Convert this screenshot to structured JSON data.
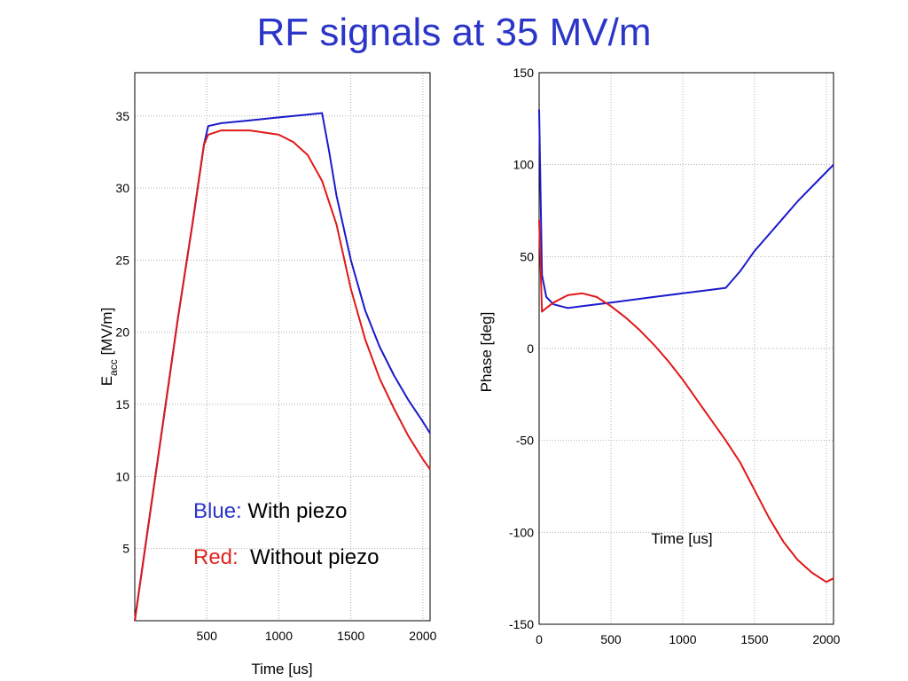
{
  "slide": {
    "title": "RF signals at 35 MV/m"
  },
  "legend": {
    "blue_key": "Blue:",
    "blue_text": "With piezo",
    "red_key": "Red:",
    "red_text": "Without piezo"
  },
  "colors": {
    "blue": "#1a1acc",
    "red": "#e01818",
    "grid": "#b0b0b0"
  },
  "chart_data": [
    {
      "type": "line",
      "xlabel": "Time [us]",
      "ylabel_main": "E",
      "ylabel_sub": "acc",
      "ylabel_rest": " [MV/m]",
      "xlim": [
        0,
        2050
      ],
      "ylim": [
        0,
        38
      ],
      "xticks": [
        500,
        1000,
        1500,
        2000
      ],
      "yticks": [
        5,
        10,
        15,
        20,
        25,
        30,
        35
      ],
      "grid": true,
      "series": [
        {
          "color": "blue",
          "x": [
            0,
            100,
            200,
            300,
            400,
            480,
            510,
            600,
            800,
            1000,
            1200,
            1300,
            1350,
            1400,
            1500,
            1600,
            1700,
            1800,
            1900,
            2000,
            2050
          ],
          "y": [
            0,
            7,
            14,
            21,
            27.5,
            33,
            34.3,
            34.5,
            34.7,
            34.9,
            35.1,
            35.2,
            32.5,
            29.5,
            25,
            21.5,
            19,
            17,
            15.3,
            13.8,
            13
          ]
        },
        {
          "color": "red",
          "x": [
            0,
            100,
            200,
            300,
            400,
            480,
            510,
            600,
            800,
            1000,
            1100,
            1200,
            1300,
            1400,
            1500,
            1600,
            1700,
            1800,
            1900,
            2000,
            2050
          ],
          "y": [
            0,
            7,
            14,
            21,
            27.5,
            33,
            33.7,
            34,
            34,
            33.7,
            33.2,
            32.3,
            30.5,
            27.5,
            23,
            19.5,
            16.8,
            14.7,
            12.8,
            11.2,
            10.5
          ]
        }
      ]
    },
    {
      "type": "line",
      "xlabel": "Time [us]",
      "ylabel": "Phase [deg]",
      "xlim": [
        0,
        2050
      ],
      "ylim": [
        -150,
        150
      ],
      "xticks": [
        0,
        500,
        1000,
        1500,
        2000
      ],
      "yticks": [
        -150,
        -100,
        -50,
        0,
        50,
        100,
        150
      ],
      "grid": true,
      "series": [
        {
          "color": "blue",
          "x": [
            0,
            20,
            50,
            100,
            200,
            300,
            400,
            500,
            600,
            800,
            1000,
            1200,
            1300,
            1400,
            1500,
            1600,
            1700,
            1800,
            1900,
            2000,
            2050
          ],
          "y": [
            130,
            40,
            28,
            24,
            22,
            23,
            24,
            25,
            26,
            28,
            30,
            32,
            33,
            42,
            53,
            62,
            71,
            80,
            88,
            96,
            100
          ]
        },
        {
          "color": "red",
          "x": [
            0,
            20,
            50,
            100,
            200,
            300,
            400,
            500,
            600,
            700,
            800,
            900,
            1000,
            1100,
            1200,
            1300,
            1400,
            1500,
            1600,
            1700,
            1800,
            1900,
            2000,
            2050
          ],
          "y": [
            70,
            20,
            22,
            25,
            29,
            30,
            28,
            23,
            17,
            10,
            2,
            -7,
            -17,
            -28,
            -39,
            -50,
            -62,
            -77,
            -92,
            -105,
            -115,
            -122,
            -127,
            -125
          ]
        }
      ]
    }
  ]
}
